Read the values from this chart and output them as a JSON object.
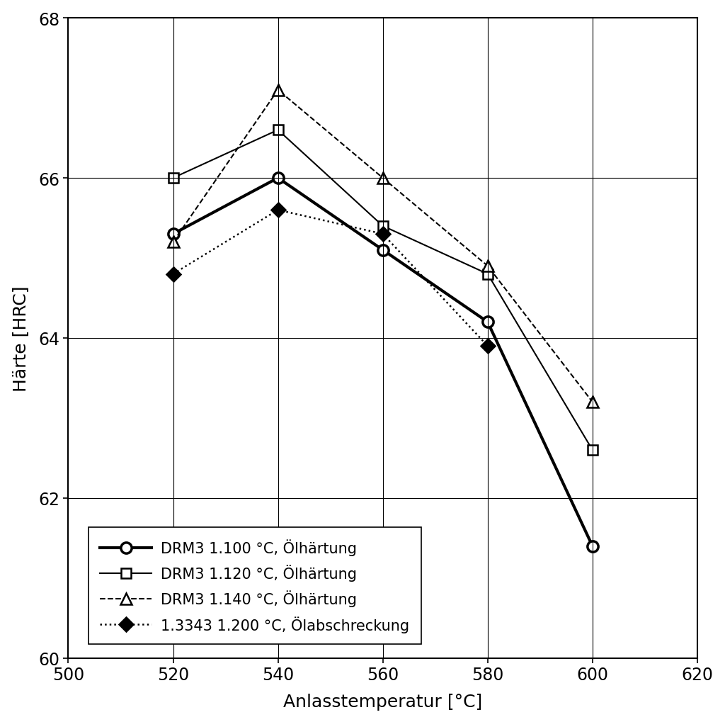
{
  "xlabel": "Anlasstemperatur [°C]",
  "ylabel": "Härte [HRC]",
  "xlim": [
    500,
    620
  ],
  "ylim": [
    60,
    68
  ],
  "xticks": [
    500,
    520,
    540,
    560,
    580,
    600,
    620
  ],
  "yticks": [
    60,
    62,
    64,
    66,
    68
  ],
  "series": [
    {
      "label": "DRM3 1.100 °C, Ölhärtung",
      "x": [
        520,
        540,
        560,
        580,
        600
      ],
      "y": [
        65.3,
        66.0,
        65.1,
        64.2,
        61.4
      ],
      "marker": "o",
      "linestyle": "-",
      "linewidth": 3.0,
      "markersize": 11,
      "color": "#000000",
      "markerfacecolor": "#ffffff",
      "markeredgewidth": 2.5
    },
    {
      "label": "DRM3 1.120 °C, Ölhärtung",
      "x": [
        520,
        540,
        560,
        580,
        600
      ],
      "y": [
        66.0,
        66.6,
        65.4,
        64.8,
        62.6
      ],
      "marker": "s",
      "linestyle": "-",
      "linewidth": 1.5,
      "markersize": 10,
      "color": "#000000",
      "markerfacecolor": "#ffffff",
      "markeredgewidth": 1.8
    },
    {
      "label": "DRM3 1.140 °C, Ölhärtung",
      "x": [
        520,
        540,
        560,
        580,
        600
      ],
      "y": [
        65.2,
        67.1,
        66.0,
        64.9,
        63.2
      ],
      "marker": "^",
      "linestyle": "--",
      "linewidth": 1.5,
      "markersize": 12,
      "color": "#000000",
      "markerfacecolor": "#ffffff",
      "markeredgewidth": 1.8
    },
    {
      "label": "1.3343 1.200 °C, Ölabschreckung",
      "x": [
        520,
        540,
        560,
        580
      ],
      "y": [
        64.8,
        65.6,
        65.3,
        63.9
      ],
      "marker": "D",
      "linestyle": ":",
      "linewidth": 1.8,
      "markersize": 10,
      "color": "#000000",
      "markerfacecolor": "#000000",
      "markeredgewidth": 1.8
    }
  ],
  "background_color": "#ffffff",
  "grid_color": "#000000",
  "font_size": 18,
  "tick_fontsize": 17,
  "legend_fontsize": 15
}
